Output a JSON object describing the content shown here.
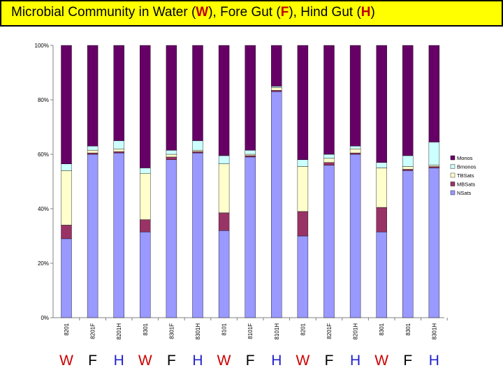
{
  "title": {
    "parts": [
      {
        "text": "Microbial Community in  Water (",
        "accent": false
      },
      {
        "text": "W",
        "accent": true
      },
      {
        "text": "), Fore Gut (",
        "accent": false
      },
      {
        "text": "F",
        "accent": true
      },
      {
        "text": "), Hind Gut (",
        "accent": false
      },
      {
        "text": "H",
        "accent": true
      },
      {
        "text": ")",
        "accent": false
      }
    ]
  },
  "colors": {
    "title_background": "#ffff00",
    "title_accent": "#c00000",
    "label_red": "#cc0000",
    "label_blue": "#2222cc"
  },
  "chart_data": {
    "type": "bar",
    "stacked": true,
    "normalized": true,
    "ylim": [
      0,
      100
    ],
    "yticks": [
      "0%",
      "20%",
      "40%",
      "60%",
      "80%",
      "100%"
    ],
    "grid": false,
    "legend_position": "right",
    "categories": [
      "8201",
      "8201F",
      "8201H",
      "8301",
      "8301F",
      "8301H",
      "8101",
      "8101F",
      "8101H",
      "8201",
      "8201F",
      "8201H",
      "8301",
      "8301",
      "8301H"
    ],
    "series": [
      {
        "name": "NSats",
        "color": "#9999ff",
        "values": [
          29,
          60,
          60.5,
          31.5,
          58,
          60.5,
          32,
          59,
          83,
          30,
          56,
          60,
          31.5,
          54,
          55
        ]
      },
      {
        "name": "MBSats",
        "color": "#993366",
        "values": [
          5,
          0.5,
          0.5,
          4.5,
          1,
          0.5,
          6.5,
          0.5,
          0.5,
          9,
          1,
          0.5,
          9,
          0.5,
          0.5
        ]
      },
      {
        "name": "TBSats",
        "color": "#ffffcc",
        "values": [
          20,
          1,
          1,
          17,
          1,
          0.5,
          18,
          0.5,
          1,
          16.5,
          1.5,
          1.5,
          14.5,
          1,
          0.5
        ]
      },
      {
        "name": "Bmonos",
        "color": "#ccffff",
        "values": [
          2.5,
          1.5,
          3,
          2,
          1.5,
          3.5,
          3,
          1.5,
          0.5,
          2.5,
          1.5,
          1,
          2,
          4,
          8.5
        ]
      },
      {
        "name": "Monos",
        "color": "#660066",
        "values": [
          43.5,
          37,
          35,
          45,
          38.5,
          35,
          40.5,
          38.5,
          15,
          42,
          40,
          37,
          43,
          40.5,
          35.5
        ]
      }
    ],
    "legend_order": [
      "Monos",
      "Bmonos",
      "TBSats",
      "MBSats",
      "NSats"
    ]
  },
  "sample_labels": [
    {
      "text": "W",
      "color": "#cc0000"
    },
    {
      "text": "F",
      "color": "#000000"
    },
    {
      "text": "H",
      "color": "#2222cc"
    },
    {
      "text": "W",
      "color": "#cc0000"
    },
    {
      "text": "F",
      "color": "#000000"
    },
    {
      "text": "H",
      "color": "#2222cc"
    },
    {
      "text": "W",
      "color": "#cc0000"
    },
    {
      "text": "F",
      "color": "#000000"
    },
    {
      "text": "H",
      "color": "#2222cc"
    },
    {
      "text": "W",
      "color": "#cc0000"
    },
    {
      "text": "F",
      "color": "#000000"
    },
    {
      "text": "H",
      "color": "#2222cc"
    },
    {
      "text": "W",
      "color": "#cc0000"
    },
    {
      "text": "F",
      "color": "#000000"
    },
    {
      "text": "H",
      "color": "#2222cc"
    }
  ]
}
